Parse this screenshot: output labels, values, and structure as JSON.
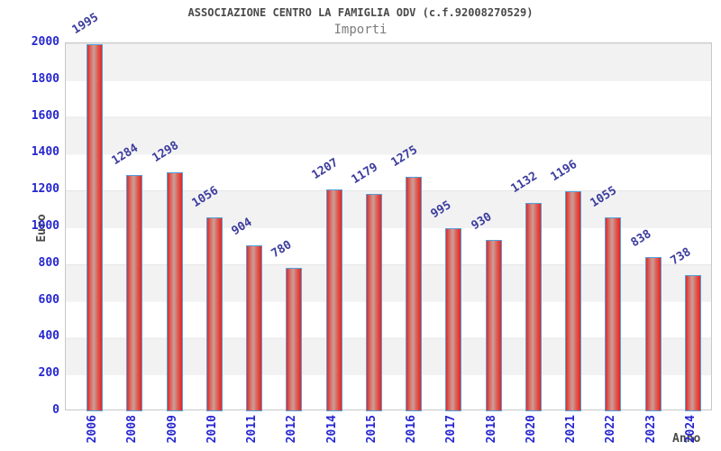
{
  "title": "ASSOCIAZIONE CENTRO LA FAMIGLIA ODV (c.f.92008270529)",
  "subtitle": "Importi",
  "chart_data": {
    "type": "bar",
    "title": "ASSOCIAZIONE CENTRO LA FAMIGLIA ODV (c.f.92008270529)",
    "subtitle": "Importi",
    "xlabel": "Anno",
    "ylabel": "Euro",
    "categories": [
      "2006",
      "2008",
      "2009",
      "2010",
      "2011",
      "2012",
      "2014",
      "2015",
      "2016",
      "2017",
      "2018",
      "2020",
      "2021",
      "2022",
      "2023",
      "2024"
    ],
    "values": [
      1995,
      1284,
      1298,
      1056,
      904,
      780,
      1207,
      1179,
      1275,
      995,
      930,
      1132,
      1196,
      1055,
      838,
      738
    ],
    "ylim": [
      0,
      2000
    ],
    "ytick_step": 200,
    "yticks": [
      2000,
      1800,
      1600,
      1400,
      1200,
      1000,
      800,
      600,
      400,
      200,
      0
    ],
    "legend": "none",
    "grid": "alternating-horizontal-bands-every-200",
    "bar_value_labels_rotated": true,
    "x_labels_rotated": true,
    "colors": {
      "bar_gradient_edge": "#df2b28",
      "bar_gradient_mid": "#cb9e99",
      "bar_border": "#55a0d9",
      "tick_label": "#2727cf",
      "value_label": "#3c3c9e",
      "title": "#4a4a4a",
      "subtitle": "#7c7c7c",
      "axis_title": "#4a4a4a",
      "band_gray": "#f2f2f2",
      "band_white": "#ffffff",
      "plot_border": "#c8c8c8"
    }
  }
}
